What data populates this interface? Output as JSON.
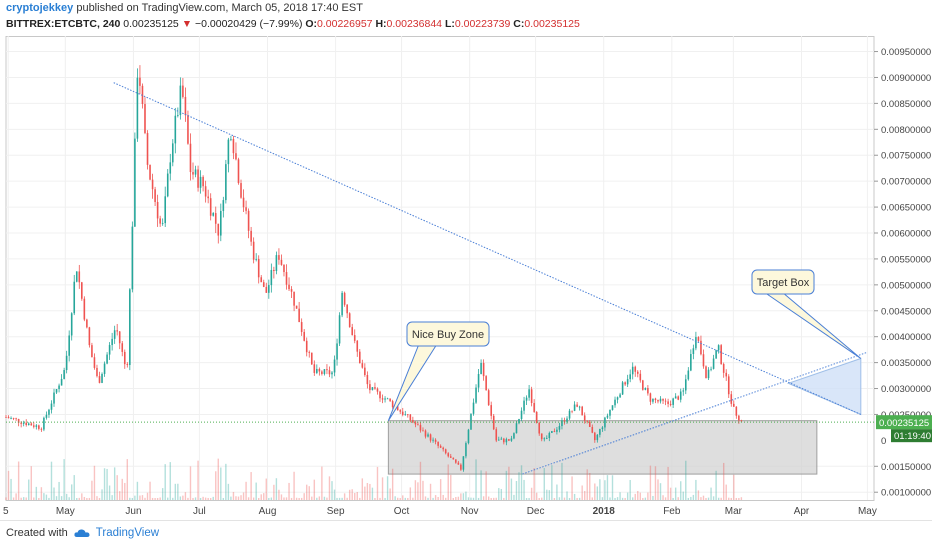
{
  "header": {
    "author": "cryptojekkey",
    "published_text": "published on TradingView.com, March 05, 2018 17:40 EST",
    "symbol": "BITTREX:ETCBTC, 240",
    "last": "0.00235125",
    "change_arrow": "▼",
    "change": "−0.00020429 (−7.99%)",
    "o_label": "O:",
    "o": "0.00226957",
    "h_label": "H:",
    "h": "0.00236844",
    "l_label": "L:",
    "l": "0.00223739",
    "c_label": "C:",
    "c": "0.00235125"
  },
  "footer": {
    "created_with": "Created with",
    "brand": "TradingView"
  },
  "colors": {
    "up": "#26a69a",
    "down": "#ef5350",
    "trendline": "#4a7fd6",
    "buy_zone_fill": "#d3d3d3",
    "target_fill": "#cfe0f7",
    "price_line": "#4caf50",
    "callout_fill": "#fdf8dc",
    "callout_border": "#4a7fd6"
  },
  "chart_data": {
    "type": "candlestick",
    "x_tick_labels": [
      "5",
      "May",
      "Jun",
      "Jul",
      "Aug",
      "Sep",
      "Oct",
      "Nov",
      "Dec",
      "2018",
      "Feb",
      "Mar",
      "Apr",
      "May"
    ],
    "x_tick_dates": [
      "2017-04-05",
      "2017-05-01",
      "2017-06-01",
      "2017-07-01",
      "2017-08-01",
      "2017-09-01",
      "2017-10-01",
      "2017-11-01",
      "2017-12-01",
      "2018-01-01",
      "2018-02-01",
      "2018-03-01",
      "2018-04-01",
      "2018-05-01"
    ],
    "y_tick_labels": [
      "0.00950000",
      "0.00900000",
      "0.00850000",
      "0.00800000",
      "0.00750000",
      "0.00700000",
      "0.00650000",
      "0.00600000",
      "0.00550000",
      "0.00500000",
      "0.00450000",
      "0.00400000",
      "0.00350000",
      "0.00300000",
      "0.00250000",
      "0.00150000",
      "0.00100000"
    ],
    "y_ticks": [
      0.0095,
      0.009,
      0.0085,
      0.008,
      0.0075,
      0.007,
      0.0065,
      0.006,
      0.0055,
      0.005,
      0.0045,
      0.004,
      0.0035,
      0.003,
      0.0025,
      0.0015,
      0.001
    ],
    "y_range": [
      0.00085,
      0.0098
    ],
    "x_range": [
      "2017-04-04",
      "2018-05-04"
    ],
    "current_price_label": "0.00235125",
    "countdown_label": "01:19:40",
    "partial_tick_label": "0",
    "price_path": [
      [
        "2017-04-04",
        0.00245
      ],
      [
        "2017-04-20",
        0.00225
      ],
      [
        "2017-05-01",
        0.0034
      ],
      [
        "2017-05-06",
        0.0054
      ],
      [
        "2017-05-12",
        0.0038
      ],
      [
        "2017-05-16",
        0.0031
      ],
      [
        "2017-05-24",
        0.0042
      ],
      [
        "2017-05-29",
        0.0033
      ],
      [
        "2017-06-01",
        0.0068
      ],
      [
        "2017-06-03",
        0.0094
      ],
      [
        "2017-06-07",
        0.0074
      ],
      [
        "2017-06-14",
        0.006
      ],
      [
        "2017-06-18",
        0.0076
      ],
      [
        "2017-06-23",
        0.0088
      ],
      [
        "2017-06-27",
        0.0072
      ],
      [
        "2017-07-03",
        0.0069
      ],
      [
        "2017-07-10",
        0.006
      ],
      [
        "2017-07-15",
        0.0081
      ],
      [
        "2017-07-20",
        0.0068
      ],
      [
        "2017-07-25",
        0.0057
      ],
      [
        "2017-07-31",
        0.0048
      ],
      [
        "2017-08-06",
        0.0056
      ],
      [
        "2017-08-13",
        0.0047
      ],
      [
        "2017-08-22",
        0.0033
      ],
      [
        "2017-08-31",
        0.0033
      ],
      [
        "2017-09-04",
        0.0049
      ],
      [
        "2017-09-10",
        0.0038
      ],
      [
        "2017-09-16",
        0.003
      ],
      [
        "2017-09-24",
        0.0028
      ],
      [
        "2017-10-05",
        0.0024
      ],
      [
        "2017-10-15",
        0.002
      ],
      [
        "2017-10-28",
        0.00145
      ],
      [
        "2017-11-06",
        0.0035
      ],
      [
        "2017-11-13",
        0.002
      ],
      [
        "2017-11-20",
        0.002
      ],
      [
        "2017-11-28",
        0.003
      ],
      [
        "2017-12-04",
        0.00195
      ],
      [
        "2017-12-12",
        0.0023
      ],
      [
        "2017-12-20",
        0.0027
      ],
      [
        "2017-12-28",
        0.002
      ],
      [
        "2018-01-04",
        0.0026
      ],
      [
        "2018-01-14",
        0.0034
      ],
      [
        "2018-01-22",
        0.0028
      ],
      [
        "2018-01-30",
        0.0027
      ],
      [
        "2018-02-06",
        0.0029
      ],
      [
        "2018-02-12",
        0.0041
      ],
      [
        "2018-02-17",
        0.0032
      ],
      [
        "2018-02-22",
        0.0038
      ],
      [
        "2018-03-01",
        0.0026
      ],
      [
        "2018-03-05",
        0.00235
      ]
    ],
    "volume_levels": {
      "note": ""
    },
    "annotations": [
      {
        "type": "trendline",
        "from": [
          "2017-05-23",
          0.0089
        ],
        "to": [
          "2018-04-28",
          0.0025
        ]
      },
      {
        "type": "trendline",
        "from": [
          "2017-11-25",
          0.00135
        ],
        "to": [
          "2018-05-01",
          0.0037
        ]
      },
      {
        "type": "rectangle",
        "label": "Nice Buy Zone",
        "x0": "2017-09-25",
        "x1": "2018-04-08",
        "y0": 0.00135,
        "y1": 0.00238
      },
      {
        "type": "triangle",
        "label": "Target Box",
        "points": [
          [
            "2018-03-26",
            0.0031
          ],
          [
            "2018-04-28",
            0.00358
          ],
          [
            "2018-04-28",
            0.0025
          ]
        ]
      }
    ]
  }
}
